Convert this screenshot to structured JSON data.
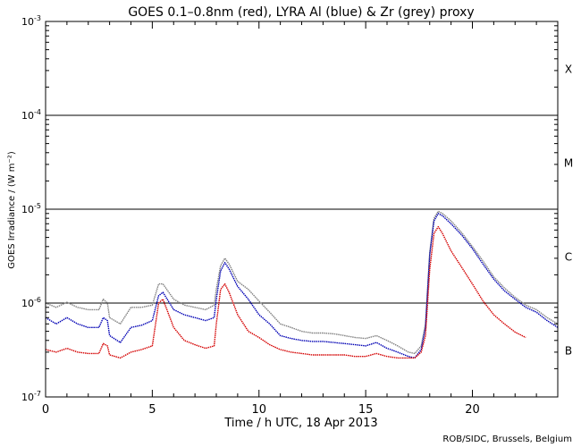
{
  "chart_data": {
    "type": "line",
    "title": "GOES 0.1–0.8nm (red), LYRA Al (blue) & Zr (grey) proxy",
    "xlabel": "Time / h UTC, 18 Apr 2013",
    "ylabel": "GOES Irradiance / (W m⁻²)",
    "credit": "ROB/SIDC, Brussels, Belgium",
    "xlim": [
      0,
      24
    ],
    "ylim": [
      1e-07,
      0.001
    ],
    "y_scale": "log",
    "x_ticks": [
      0,
      5,
      10,
      15,
      20
    ],
    "x_tick_labels": [
      "0",
      "5",
      "10",
      "15",
      "20"
    ],
    "y_ticks": [
      {
        "exp": -7,
        "base": "10",
        "sup": "-7"
      },
      {
        "exp": -6,
        "base": "10",
        "sup": "-6"
      },
      {
        "exp": -5,
        "base": "10",
        "sup": "-5"
      },
      {
        "exp": -4,
        "base": "10",
        "sup": "-4"
      },
      {
        "exp": -3,
        "base": "10",
        "sup": "-3"
      }
    ],
    "threshold_lines": [
      1e-06,
      1e-05,
      0.0001
    ],
    "flare_classes": [
      {
        "label": "X",
        "value": 0.000316
      },
      {
        "label": "M",
        "value": 3.16e-05
      },
      {
        "label": "C",
        "value": 3.16e-06
      },
      {
        "label": "B",
        "value": 3.16e-07
      }
    ],
    "series": [
      {
        "color": "#808080",
        "x": [
          0,
          0.5,
          1,
          1.5,
          2,
          2.5,
          2.7,
          2.9,
          3.0,
          3.5,
          4.0,
          4.5,
          5.0,
          5.3,
          5.5,
          6.0,
          6.5,
          7.0,
          7.5,
          7.9,
          8.0,
          8.2,
          8.4,
          8.6,
          9.0,
          9.5,
          10.0,
          10.5,
          11.0,
          11.5,
          12.0,
          12.5,
          13.0,
          13.5,
          14.0,
          14.5,
          15.0,
          15.5,
          16.0,
          16.5,
          17.0,
          17.3,
          17.6,
          17.8,
          18.0,
          18.2,
          18.4,
          18.6,
          19.0,
          19.5,
          20.0,
          20.5,
          21.0,
          21.5,
          22.0,
          22.5,
          23.0,
          23.5,
          24.0
        ],
        "y": [
          1e-06,
          9e-07,
          1.02e-06,
          9e-07,
          8.5e-07,
          8.5e-07,
          1.1e-06,
          1e-06,
          7e-07,
          6e-07,
          9e-07,
          9e-07,
          9.5e-07,
          1.6e-06,
          1.6e-06,
          1.1e-06,
          9.5e-07,
          9e-07,
          8.5e-07,
          9.5e-07,
          1.4e-06,
          2.5e-06,
          3e-06,
          2.6e-06,
          1.7e-06,
          1.4e-06,
          1.05e-06,
          8e-07,
          6e-07,
          5.5e-07,
          5e-07,
          4.8e-07,
          4.8e-07,
          4.7e-07,
          4.5e-07,
          4.3e-07,
          4.2e-07,
          4.5e-07,
          4e-07,
          3.5e-07,
          3e-07,
          2.9e-07,
          3.5e-07,
          6e-07,
          3.5e-06,
          8e-06,
          9.5e-06,
          9e-06,
          7.5e-06,
          5.6e-06,
          4e-06,
          2.8e-06,
          1.9e-06,
          1.45e-06,
          1.15e-06,
          9.5e-07,
          8.5e-07,
          7e-07,
          6e-07
        ]
      },
      {
        "color": "#0000b4",
        "x": [
          0,
          0.5,
          1,
          1.5,
          2,
          2.5,
          2.7,
          2.9,
          3.0,
          3.5,
          4.0,
          4.5,
          5.0,
          5.3,
          5.5,
          6.0,
          6.5,
          7.0,
          7.5,
          7.9,
          8.0,
          8.2,
          8.4,
          8.6,
          9.0,
          9.5,
          10.0,
          10.5,
          11.0,
          11.5,
          12.0,
          12.5,
          13.0,
          13.5,
          14.0,
          14.5,
          15.0,
          15.5,
          16.0,
          16.5,
          17.0,
          17.3,
          17.6,
          17.8,
          18.0,
          18.2,
          18.4,
          18.6,
          19.0,
          19.5,
          20.0,
          20.5,
          21.0,
          21.5,
          22.0,
          22.5,
          23.0,
          23.5,
          24.0
        ],
        "y": [
          7e-07,
          6e-07,
          7e-07,
          6e-07,
          5.5e-07,
          5.5e-07,
          7e-07,
          6.5e-07,
          4.5e-07,
          3.8e-07,
          5.5e-07,
          5.8e-07,
          6.5e-07,
          1.2e-06,
          1.3e-06,
          8.5e-07,
          7.5e-07,
          7e-07,
          6.5e-07,
          7e-07,
          1.1e-06,
          2.2e-06,
          2.7e-06,
          2.3e-06,
          1.5e-06,
          1.1e-06,
          7.5e-07,
          6e-07,
          4.5e-07,
          4.2e-07,
          4e-07,
          3.9e-07,
          3.9e-07,
          3.8e-07,
          3.7e-07,
          3.6e-07,
          3.5e-07,
          3.8e-07,
          3.3e-07,
          3e-07,
          2.7e-07,
          2.6e-07,
          3.2e-07,
          5.5e-07,
          3.3e-06,
          7.5e-06,
          9e-06,
          8.5e-06,
          7e-06,
          5.3e-06,
          3.8e-06,
          2.6e-06,
          1.8e-06,
          1.35e-06,
          1.1e-06,
          9e-07,
          8e-07,
          6.5e-07,
          5.5e-07
        ]
      },
      {
        "color": "#d40000",
        "x": [
          0,
          0.5,
          1,
          1.5,
          2,
          2.5,
          2.7,
          2.9,
          3.0,
          3.5,
          4.0,
          4.5,
          5.0,
          5.3,
          5.5,
          6.0,
          6.5,
          7.0,
          7.5,
          7.9,
          8.0,
          8.2,
          8.4,
          8.6,
          9.0,
          9.5,
          10.0,
          10.5,
          11.0,
          11.5,
          12.0,
          12.5,
          13.0,
          13.5,
          14.0,
          14.5,
          15.0,
          15.5,
          16.0,
          16.5,
          17.0,
          17.3,
          17.6,
          17.8,
          18.0,
          18.2,
          18.4,
          18.6,
          19.0,
          19.5,
          20.0,
          20.5,
          21.0,
          21.5,
          22.0,
          22.5
        ],
        "y": [
          3.2e-07,
          3e-07,
          3.3e-07,
          3e-07,
          2.9e-07,
          2.9e-07,
          3.7e-07,
          3.5e-07,
          2.8e-07,
          2.6e-07,
          3e-07,
          3.2e-07,
          3.5e-07,
          1e-06,
          1.1e-06,
          5.5e-07,
          4e-07,
          3.6e-07,
          3.3e-07,
          3.5e-07,
          6e-07,
          1.4e-06,
          1.6e-06,
          1.3e-06,
          7.5e-07,
          5e-07,
          4.3e-07,
          3.6e-07,
          3.2e-07,
          3e-07,
          2.9e-07,
          2.8e-07,
          2.8e-07,
          2.8e-07,
          2.8e-07,
          2.7e-07,
          2.7e-07,
          2.9e-07,
          2.7e-07,
          2.6e-07,
          2.6e-07,
          2.6e-07,
          3e-07,
          4.5e-07,
          2.3e-06,
          5.5e-06,
          6.5e-06,
          5.5e-06,
          3.6e-06,
          2.4e-06,
          1.6e-06,
          1.05e-06,
          7.5e-07,
          6e-07,
          4.9e-07,
          4.3e-07
        ]
      }
    ]
  }
}
